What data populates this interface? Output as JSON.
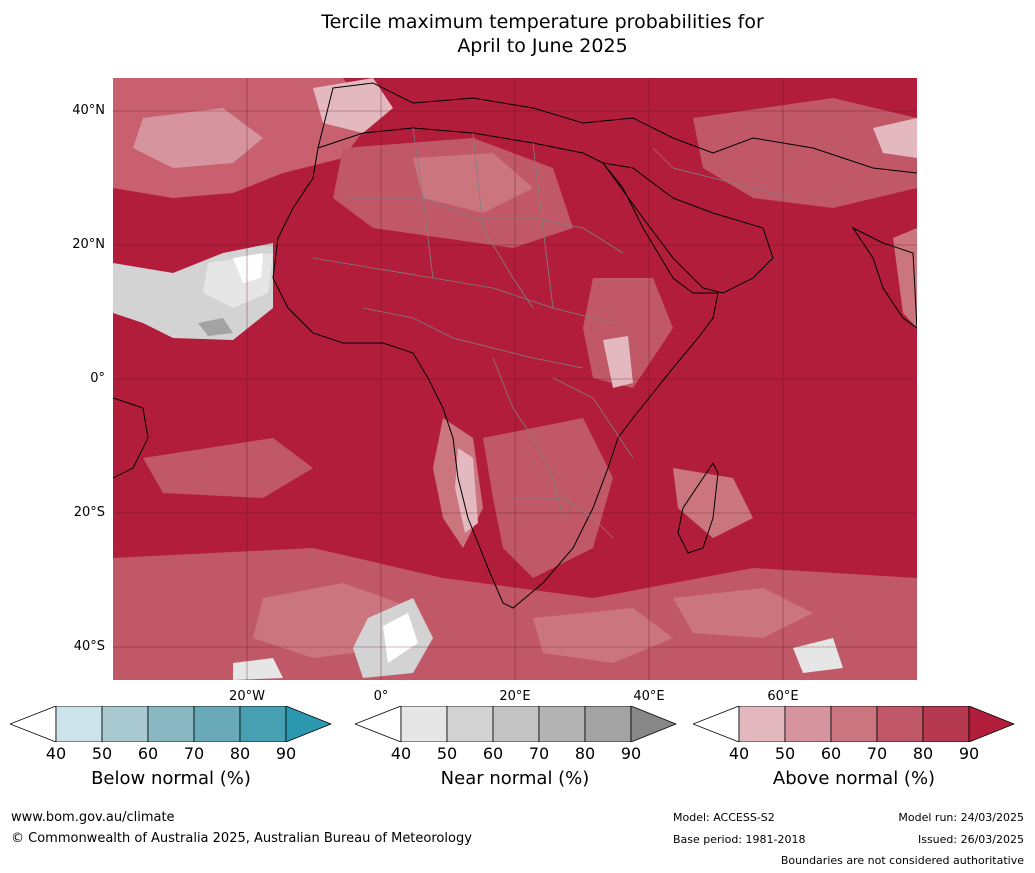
{
  "title_line1": "Tercile maximum temperature probabilities for",
  "title_line2": "April to June 2025",
  "map": {
    "lat_labels": [
      "40°N",
      "20°N",
      "0°",
      "20°S",
      "40°S"
    ],
    "lon_labels": [
      "20°W",
      "0°",
      "20°E",
      "40°E",
      "60°E"
    ],
    "base_color": "#b21d3b",
    "land_border_color": "#000000",
    "country_border_color": "#808080"
  },
  "colorbars": [
    {
      "title": "Below normal (%)",
      "ticks": [
        "40",
        "50",
        "60",
        "70",
        "80",
        "90"
      ],
      "colors": [
        "#ffffff",
        "#cce3ea",
        "#a8c9d0",
        "#89b7c2",
        "#6aa9b8",
        "#47a0b2",
        "#2d99b0"
      ]
    },
    {
      "title": "Near normal (%)",
      "ticks": [
        "40",
        "50",
        "60",
        "70",
        "80",
        "90"
      ],
      "colors": [
        "#ffffff",
        "#e6e6e6",
        "#d3d3d3",
        "#c3c3c3",
        "#b3b3b3",
        "#a3a3a3",
        "#878787"
      ]
    },
    {
      "title": "Above normal (%)",
      "ticks": [
        "40",
        "50",
        "60",
        "70",
        "80",
        "90"
      ],
      "colors": [
        "#ffffff",
        "#e3b8bf",
        "#d6959e",
        "#cb757f",
        "#c05867",
        "#b6394f",
        "#b21d3b"
      ]
    }
  ],
  "footer": {
    "url": "www.bom.gov.au/climate",
    "copyright": "© Commonwealth of Australia 2025, Australian Bureau of Meteorology",
    "model": "Model: ACCESS-S2",
    "base_period": "Base period: 1981-2018",
    "model_run": "Model run: 24/03/2025",
    "issued": "Issued: 26/03/2025",
    "boundaries": "Boundaries are not considered authoritative"
  }
}
